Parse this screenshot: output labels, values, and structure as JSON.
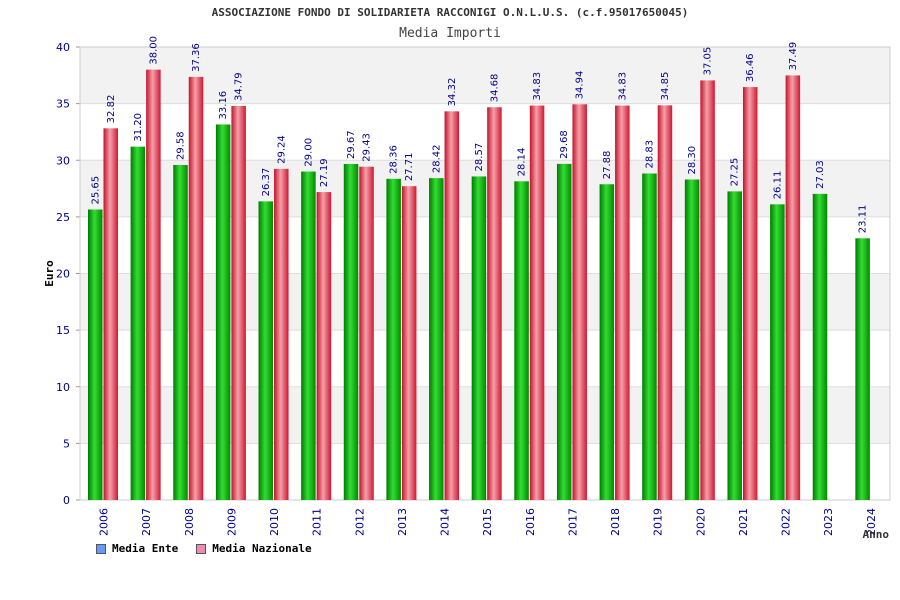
{
  "chart_data": {
    "type": "bar",
    "title": "ASSOCIAZIONE FONDO DI SOLIDARIETA RACCONIGI O.N.L.U.S. (c.f.95017650045)",
    "subtitle": "Media Importi",
    "xlabel": "Anno",
    "ylabel": "Euro",
    "ylim": [
      0,
      40
    ],
    "yticks": [
      0,
      5,
      10,
      15,
      20,
      25,
      30,
      35,
      40
    ],
    "categories": [
      "2006",
      "2007",
      "2008",
      "2009",
      "2010",
      "2011",
      "2012",
      "2013",
      "2014",
      "2015",
      "2016",
      "2017",
      "2018",
      "2019",
      "2020",
      "2021",
      "2022",
      "2023",
      "2024"
    ],
    "series": [
      {
        "name": "Media Ente",
        "color": "#00b400",
        "legend_color": "#6699ff",
        "values": [
          25.65,
          31.2,
          29.58,
          33.16,
          26.37,
          29.0,
          29.67,
          28.36,
          28.42,
          28.57,
          28.14,
          29.68,
          27.88,
          28.83,
          28.3,
          27.25,
          26.11,
          27.03,
          23.11
        ],
        "labels": [
          "25.65",
          "31.20",
          "29.58",
          "33.16",
          "26.37",
          "29.00",
          "29.67",
          "28.36",
          "28.42",
          "28.57",
          "28.14",
          "29.68",
          "27.88",
          "28.83",
          "28.30",
          "27.25",
          "26.11",
          "27.03",
          "23.11"
        ]
      },
      {
        "name": "Media Nazionale",
        "color": "#e8283c",
        "legend_color": "#e88cb4",
        "values": [
          32.82,
          38.0,
          37.36,
          34.79,
          29.24,
          27.19,
          29.43,
          27.71,
          34.32,
          34.68,
          34.83,
          34.94,
          34.83,
          34.85,
          37.05,
          36.46,
          37.49,
          null,
          null
        ],
        "labels": [
          "32.82",
          "38.00",
          "37.36",
          "34.79",
          "29.24",
          "27.19",
          "29.43",
          "27.71",
          "34.32",
          "34.68",
          "34.83",
          "34.94",
          "34.83",
          "34.85",
          "37.05",
          "36.46",
          "37.49",
          null,
          null
        ]
      }
    ],
    "grid": true,
    "band_colors": [
      "#f2f2f2",
      "#ffffff"
    ],
    "axis_text_color": "#00008b",
    "label_text_color": "#00008b",
    "legend_position": "bottom-left"
  }
}
